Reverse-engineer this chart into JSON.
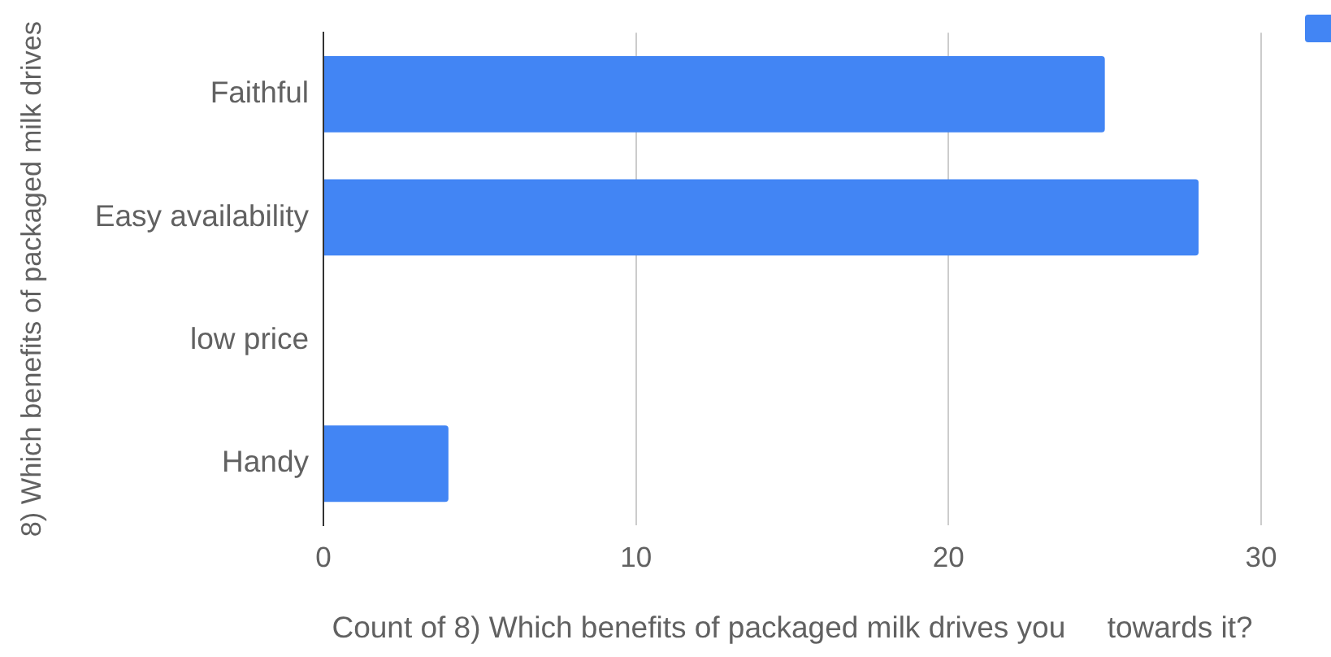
{
  "chart_data": {
    "type": "bar",
    "orientation": "horizontal",
    "categories": [
      "Faithful",
      "Easy availability",
      "low price",
      "Handy"
    ],
    "series": [
      {
        "color": "#4285f4",
        "values": [
          25,
          28,
          0,
          4
        ]
      }
    ],
    "xlim": [
      0,
      30
    ],
    "xticks": [
      0,
      10,
      20,
      30
    ],
    "xlabel": "Count of 8) Which benefits of packaged milk drives you     towards it?",
    "ylabel": "8) Which benefits of packaged milk drives",
    "grid": "x"
  }
}
